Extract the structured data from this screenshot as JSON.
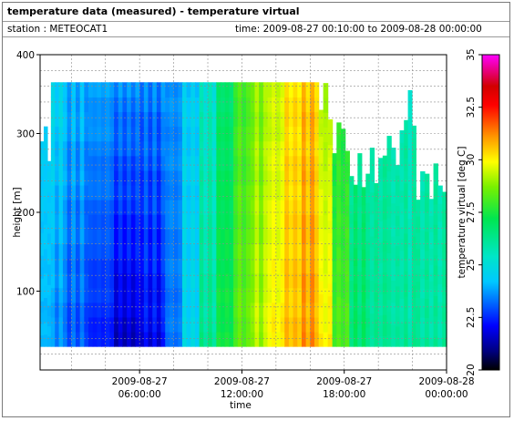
{
  "header": {
    "title": "temperature data (measured) - temperature virtual",
    "station": "station : METEOCAT1",
    "time_range": "time: 2009-08-27 00:10:00 to 2009-08-28 00:00:00"
  },
  "chart_data": {
    "type": "heatmap",
    "xlabel": "time",
    "ylabel": "height [m]",
    "x_ticks": [
      {
        "value": 6,
        "line1": "2009-08-27",
        "line2": "06:00:00"
      },
      {
        "value": 12,
        "line1": "2009-08-27",
        "line2": "12:00:00"
      },
      {
        "value": 18,
        "line1": "2009-08-27",
        "line2": "18:00:00"
      },
      {
        "value": 24,
        "line1": "2009-08-28",
        "line2": "00:00:00"
      }
    ],
    "xlim": [
      0.1667,
      24
    ],
    "y_ticks": [
      100,
      200,
      300,
      400
    ],
    "ylim": [
      0,
      400
    ],
    "colorbar": {
      "label": "temperature virtual [deg C]",
      "range": [
        20,
        35
      ],
      "ticks": [
        "20",
        "22.5",
        "25",
        "27.5",
        "30",
        "32.5",
        "35"
      ]
    },
    "grid": true,
    "height_bins_m": {
      "bottom": 30,
      "top": 365
    },
    "columns": [
      {
        "start_h": 0.17,
        "end_h": 0.8,
        "top_m": 290,
        "surface_c": 24.0,
        "aloft_c": 24.4
      },
      {
        "start_h": 0.8,
        "end_h": 1.5,
        "top_m": 365,
        "surface_c": 23.5,
        "aloft_c": 24.6
      },
      {
        "start_h": 1.5,
        "end_h": 3.0,
        "top_m": 365,
        "surface_c": 23.0,
        "aloft_c": 24.0
      },
      {
        "start_h": 3.0,
        "end_h": 4.5,
        "top_m": 365,
        "surface_c": 22.4,
        "aloft_c": 23.8
      },
      {
        "start_h": 4.5,
        "end_h": 6.0,
        "top_m": 365,
        "surface_c": 21.6,
        "aloft_c": 23.5
      },
      {
        "start_h": 6.0,
        "end_h": 7.5,
        "top_m": 365,
        "surface_c": 22.0,
        "aloft_c": 23.4
      },
      {
        "start_h": 7.5,
        "end_h": 8.5,
        "top_m": 365,
        "surface_c": 23.3,
        "aloft_c": 23.6
      },
      {
        "start_h": 8.5,
        "end_h": 9.5,
        "top_m": 365,
        "surface_c": 24.6,
        "aloft_c": 24.4
      },
      {
        "start_h": 9.5,
        "end_h": 10.5,
        "top_m": 365,
        "surface_c": 26.2,
        "aloft_c": 25.4
      },
      {
        "start_h": 10.5,
        "end_h": 11.5,
        "top_m": 365,
        "surface_c": 27.4,
        "aloft_c": 26.8
      },
      {
        "start_h": 11.5,
        "end_h": 12.5,
        "top_m": 365,
        "surface_c": 28.4,
        "aloft_c": 28.0
      },
      {
        "start_h": 12.5,
        "end_h": 13.5,
        "top_m": 365,
        "surface_c": 29.2,
        "aloft_c": 28.8
      },
      {
        "start_h": 13.5,
        "end_h": 14.5,
        "top_m": 365,
        "surface_c": 30.0,
        "aloft_c": 29.4
      },
      {
        "start_h": 14.5,
        "end_h": 15.5,
        "top_m": 365,
        "surface_c": 30.6,
        "aloft_c": 30.2
      },
      {
        "start_h": 15.5,
        "end_h": 16.5,
        "top_m": 365,
        "surface_c": 31.0,
        "aloft_c": 30.6
      },
      {
        "start_h": 16.5,
        "end_h": 17.3,
        "top_m": 340,
        "surface_c": 30.0,
        "aloft_c": 29.2
      },
      {
        "start_h": 17.3,
        "end_h": 18.3,
        "top_m": 300,
        "surface_c": 28.2,
        "aloft_c": 27.6
      },
      {
        "start_h": 18.3,
        "end_h": 19.5,
        "top_m": 250,
        "surface_c": 26.8,
        "aloft_c": 26.4
      },
      {
        "start_h": 19.5,
        "end_h": 20.5,
        "top_m": 260,
        "surface_c": 26.2,
        "aloft_c": 26.0
      },
      {
        "start_h": 20.5,
        "end_h": 21.5,
        "top_m": 280,
        "surface_c": 26.0,
        "aloft_c": 25.8
      },
      {
        "start_h": 21.5,
        "end_h": 22.2,
        "top_m": 330,
        "surface_c": 26.0,
        "aloft_c": 25.7
      },
      {
        "start_h": 22.2,
        "end_h": 24.0,
        "top_m": 240,
        "surface_c": 26.0,
        "aloft_c": 25.9
      }
    ]
  }
}
